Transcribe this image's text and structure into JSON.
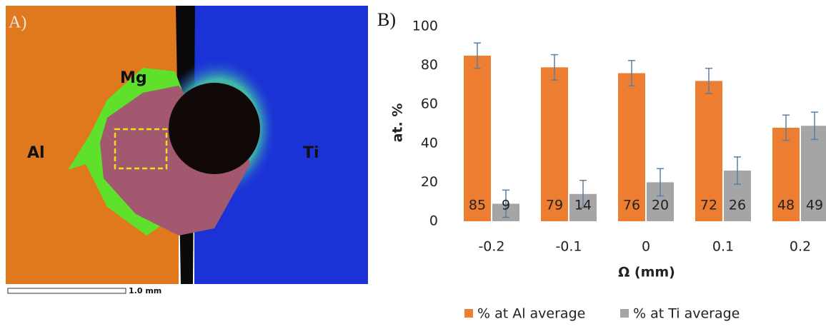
{
  "image_panel": {
    "panel_label": "A)",
    "labels": [
      "Mg",
      "Al",
      "Ti"
    ],
    "scale_bar": "1.0 mm"
  },
  "chart_data": {
    "type": "bar",
    "panel_label": "B)",
    "x_label": "Ω (mm)",
    "y_label": "at. %",
    "categories": [
      "-0.2",
      "-0.1",
      "0",
      "0.1",
      "0.2"
    ],
    "series": [
      {
        "name": "% at Al average",
        "color": "#ed7d31",
        "values": [
          85,
          79,
          76,
          72,
          48
        ],
        "errors": [
          6.5,
          6.5,
          6.5,
          6.5,
          6.5
        ]
      },
      {
        "name": "% at Ti average",
        "color": "#a5a5a5",
        "values": [
          9,
          14,
          20,
          26,
          49
        ],
        "errors": [
          7,
          7,
          7,
          7,
          7
        ]
      }
    ],
    "ylim": [
      0,
      100
    ],
    "yticks": [
      0,
      20,
      40,
      60,
      80,
      100
    ],
    "legend": "bottom"
  }
}
